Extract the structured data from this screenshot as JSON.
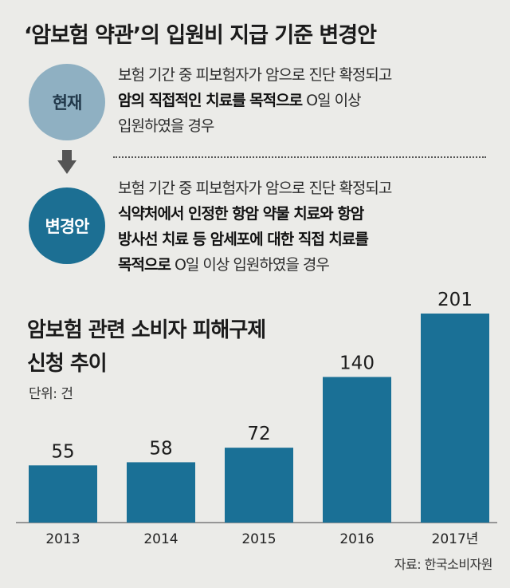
{
  "title": "‘암보험 약관’의 입원비 지급 기준 변경안",
  "current": {
    "badge": "현재",
    "lines": [
      {
        "normal": "보험 기간 중 피보험자가 암으로 진단 확정되고",
        "bold": "",
        "after": ""
      },
      {
        "normal": "",
        "bold": "암의 직접적인 치료를 목적으로",
        "after": " O일 이상"
      },
      {
        "normal": "입원하였을 경우",
        "bold": "",
        "after": ""
      }
    ]
  },
  "proposed": {
    "badge": "변경안",
    "lines": [
      {
        "normal": "보험 기간 중 피보험자가 암으로 진단 확정되고",
        "bold": "",
        "after": ""
      },
      {
        "normal": "",
        "bold": "식약처에서 인정한 항암 약물 치료와 항암",
        "after": ""
      },
      {
        "normal": "",
        "bold": "방사선 치료 등 암세포에 대한 직접 치료를",
        "after": ""
      },
      {
        "normal": "",
        "bold": "목적으로",
        "after": " O일 이상 입원하였을 경우"
      }
    ]
  },
  "chart_title_line1": "암보험 관련 소비자 피해구제",
  "chart_title_line2": "신청 추이",
  "unit": "단위: 건",
  "source": "자료: 한국소비자원",
  "colors": {
    "bar": "#1a7096",
    "current_badge": "#8fb0c2",
    "proposed_badge": "#1c6f93",
    "arrow": "#555555"
  },
  "chart_data": {
    "type": "bar",
    "title": "암보험 관련 소비자 피해구제 신청 추이",
    "ylabel": "단위: 건",
    "categories": [
      "2013",
      "2014",
      "2015",
      "2016",
      "2017년"
    ],
    "values": [
      55,
      58,
      72,
      140,
      201
    ],
    "ylim": [
      0,
      201
    ],
    "grid": false,
    "legend": "none"
  }
}
